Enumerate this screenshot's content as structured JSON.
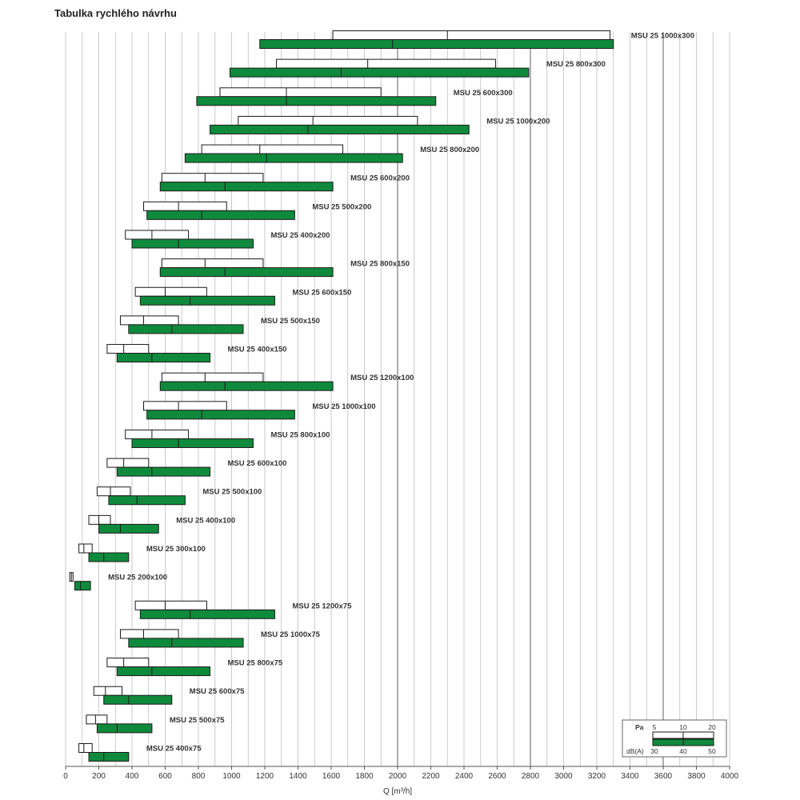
{
  "title": "Tabulka rychlého návrhu",
  "chart_data": {
    "type": "bar",
    "xlabel": "Q [m³/h]",
    "xlim": [
      0,
      4000
    ],
    "x_ticks": [
      0,
      200,
      400,
      600,
      800,
      1000,
      1200,
      1400,
      1600,
      1800,
      2000,
      2200,
      2400,
      2600,
      2800,
      3000,
      3200,
      3400,
      3600,
      3800,
      4000
    ],
    "grid": true,
    "series": [
      {
        "name": "Pa"
      },
      {
        "name": "dB(A)"
      }
    ],
    "rows": [
      {
        "label": "MSU 25 1000x300",
        "pa": [
          1610,
          2300,
          3280
        ],
        "db": [
          1170,
          1970,
          3300
        ]
      },
      {
        "label": "MSU 25 800x300",
        "pa": [
          1270,
          1820,
          2590
        ],
        "db": [
          990,
          1660,
          2790
        ]
      },
      {
        "label": "MSU 25 600x300",
        "pa": [
          930,
          1330,
          1900
        ],
        "db": [
          790,
          1330,
          2230
        ]
      },
      {
        "label": "MSU 25 1000x200",
        "pa": [
          1040,
          1490,
          2120
        ],
        "db": [
          870,
          1460,
          2430
        ]
      },
      {
        "label": "MSU 25 800x200",
        "pa": [
          820,
          1170,
          1670
        ],
        "db": [
          720,
          1210,
          2030
        ]
      },
      {
        "label": "MSU 25 600x200",
        "pa": [
          580,
          840,
          1190
        ],
        "db": [
          570,
          960,
          1610
        ]
      },
      {
        "label": "MSU 25 500x200",
        "pa": [
          470,
          680,
          970
        ],
        "db": [
          490,
          820,
          1380
        ]
      },
      {
        "label": "MSU 25 400x200",
        "pa": [
          360,
          520,
          740
        ],
        "db": [
          400,
          680,
          1130
        ]
      },
      {
        "label": "MSU 25 800x150",
        "pa": [
          580,
          840,
          1190
        ],
        "db": [
          570,
          960,
          1610
        ]
      },
      {
        "label": "MSU 25 600x150",
        "pa": [
          420,
          600,
          850
        ],
        "db": [
          450,
          750,
          1260
        ]
      },
      {
        "label": "MSU 25 500x150",
        "pa": [
          330,
          470,
          680
        ],
        "db": [
          380,
          640,
          1070
        ]
      },
      {
        "label": "MSU 25 400x150",
        "pa": [
          250,
          350,
          500
        ],
        "db": [
          310,
          520,
          870
        ]
      },
      {
        "label": "MSU 25 1200x100",
        "pa": [
          580,
          840,
          1190
        ],
        "db": [
          570,
          960,
          1610
        ]
      },
      {
        "label": "MSU 25 1000x100",
        "pa": [
          470,
          680,
          970
        ],
        "db": [
          490,
          820,
          1380
        ]
      },
      {
        "label": "MSU 25 800x100",
        "pa": [
          360,
          520,
          740
        ],
        "db": [
          400,
          680,
          1130
        ]
      },
      {
        "label": "MSU 25 600x100",
        "pa": [
          250,
          350,
          500
        ],
        "db": [
          310,
          520,
          870
        ]
      },
      {
        "label": "MSU 25 500x100",
        "pa": [
          190,
          270,
          390
        ],
        "db": [
          260,
          430,
          720
        ]
      },
      {
        "label": "MSU 25 400x100",
        "pa": [
          140,
          200,
          270
        ],
        "db": [
          200,
          330,
          560
        ]
      },
      {
        "label": "MSU 25 300x100",
        "pa": [
          80,
          110,
          160
        ],
        "db": [
          140,
          230,
          380
        ]
      },
      {
        "label": "MSU 25 200x100",
        "pa": [
          25,
          35,
          45
        ],
        "db": [
          55,
          90,
          150
        ]
      },
      {
        "label": "MSU 25 1200x75",
        "pa": [
          420,
          600,
          850
        ],
        "db": [
          450,
          750,
          1260
        ]
      },
      {
        "label": "MSU 25 1000x75",
        "pa": [
          330,
          470,
          680
        ],
        "db": [
          380,
          640,
          1070
        ]
      },
      {
        "label": "MSU 25 800x75",
        "pa": [
          250,
          350,
          500
        ],
        "db": [
          310,
          520,
          870
        ]
      },
      {
        "label": "MSU 25 600x75",
        "pa": [
          170,
          240,
          340
        ],
        "db": [
          230,
          380,
          640
        ]
      },
      {
        "label": "MSU 25 500x75",
        "pa": [
          125,
          180,
          250
        ],
        "db": [
          190,
          310,
          520
        ]
      },
      {
        "label": "MSU 25 400x75",
        "pa": [
          80,
          110,
          160
        ],
        "db": [
          140,
          230,
          380
        ]
      }
    ],
    "legend": {
      "position": "bottom-right",
      "pa_label": "Pa",
      "pa_ticks": [
        "5",
        "10",
        "20"
      ],
      "db_label": "dB(A)",
      "db_ticks": [
        "30",
        "40",
        "50"
      ]
    },
    "colors": {
      "pa_fill": "#ffffff",
      "db_fill": "#0f8a3c",
      "stroke": "#1a1a1a",
      "grid": "#bdbdbd"
    }
  }
}
